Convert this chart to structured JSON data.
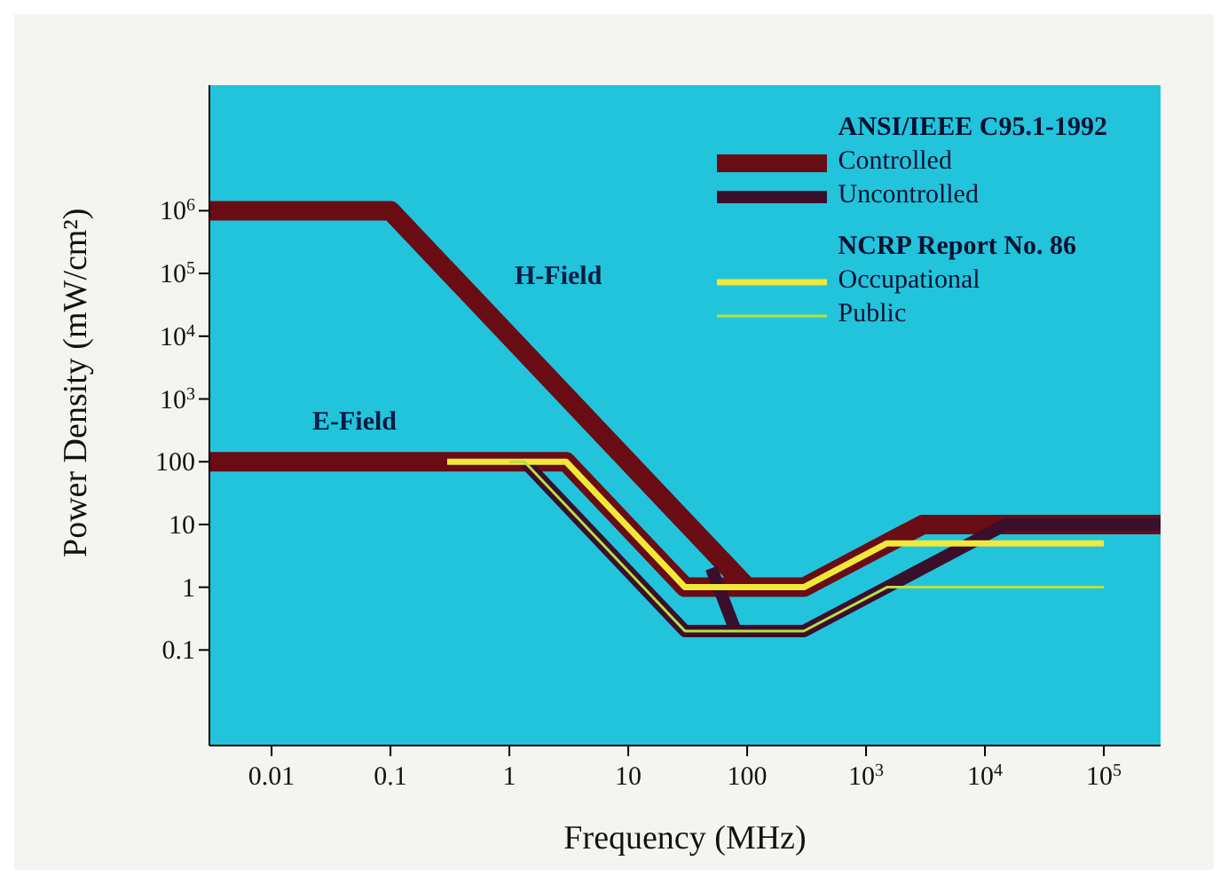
{
  "chart_data": {
    "type": "line",
    "xlabel": "Frequency (MHz)",
    "ylabel": "Power Density (mW/cm²)",
    "log": "xy",
    "xlim": [
      0.003,
      300000
    ],
    "ylim": [
      0.003,
      100000000
    ],
    "xticks": [
      0.01,
      0.1,
      1,
      10,
      100,
      {
        "value": 1000,
        "label": "10$^{3}$"
      },
      {
        "value": 10000,
        "label": "10$^{4}$"
      },
      {
        "value": 100000,
        "label": "10$^{5}$"
      }
    ],
    "yticks": [
      0.1,
      1,
      10,
      100,
      {
        "value": 1000,
        "label": "10$^{3}$"
      },
      {
        "value": 10000,
        "label": "10$^{4}$"
      },
      {
        "value": 100000,
        "label": "10$^{5}$"
      },
      {
        "value": 1000000,
        "label": "10$^{6}$"
      }
    ],
    "grid": false,
    "legend": "top right",
    "marker": "none",
    "line_style": "solid",
    "series": [
      {
        "name": "Controlled",
        "color": "#6a0c14",
        "x": [
          0.003,
          0.1,
          100,
          null,
          0.003,
          3,
          30,
          300,
          3000,
          300000
        ],
        "values": [
          1000000,
          1000000,
          1,
          null,
          100,
          100,
          1,
          1,
          10,
          10
        ]
      },
      {
        "name": "Uncontrolled",
        "color": "#3a0f2c",
        "x": [
          50,
          80,
          null,
          1.34,
          30,
          300,
          15000,
          300000
        ],
        "values": [
          2,
          0.2,
          null,
          100,
          0.2,
          0.2,
          10,
          10
        ]
      },
      {
        "name": "Occupational",
        "color": "#f2e83a",
        "x": [
          0.3,
          3,
          30,
          300,
          1500,
          100000
        ],
        "values": [
          100,
          100,
          1,
          1,
          5,
          5
        ]
      },
      {
        "name": "Public",
        "color": "#b8e040",
        "x": [
          1,
          1.34,
          30,
          300,
          1500,
          100000
        ],
        "values": [
          100,
          100,
          0.2,
          0.2,
          1,
          1
        ]
      }
    ],
    "annotations": [
      "ANSI/IEEE C95.1-1992",
      "NCRP Report No. 86",
      "H-Field",
      "E-Field"
    ]
  }
}
